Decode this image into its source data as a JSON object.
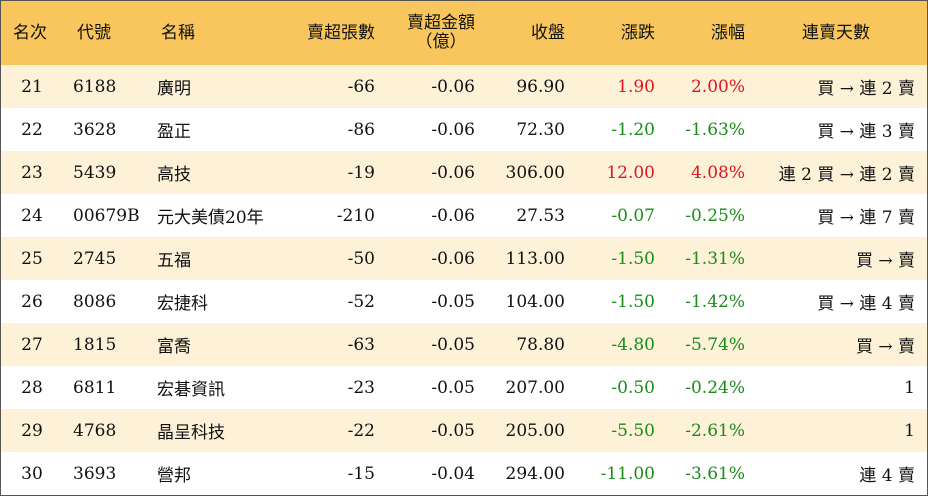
{
  "headers": {
    "rank": "名次",
    "code": "代號",
    "name": "名稱",
    "net_sell_lots": "賣超張數",
    "net_sell_amount_line1": "賣超金額",
    "net_sell_amount_line2": "（億）",
    "close": "收盤",
    "change": "漲跌",
    "change_pct": "漲幅",
    "streak": "連賣天數"
  },
  "colors": {
    "header_bg": "#f8c65c",
    "stripe_bg": "#fdf1d8",
    "up": "#e0141e",
    "down": "#1a8c1a"
  },
  "rows": [
    {
      "rank": "21",
      "code": "6188",
      "name": "廣明",
      "lots": "-66",
      "amount": "-0.06",
      "close": "96.90",
      "change": "1.90",
      "pct": "2.00%",
      "dir": "up",
      "streak": "買 → 連 2 賣"
    },
    {
      "rank": "22",
      "code": "3628",
      "name": "盈正",
      "lots": "-86",
      "amount": "-0.06",
      "close": "72.30",
      "change": "-1.20",
      "pct": "-1.63%",
      "dir": "down",
      "streak": "買 → 連 3 賣"
    },
    {
      "rank": "23",
      "code": "5439",
      "name": "高技",
      "lots": "-19",
      "amount": "-0.06",
      "close": "306.00",
      "change": "12.00",
      "pct": "4.08%",
      "dir": "up",
      "streak": "連 2 買 → 連 2 賣"
    },
    {
      "rank": "24",
      "code": "00679B",
      "name": "元大美債20年",
      "lots": "-210",
      "amount": "-0.06",
      "close": "27.53",
      "change": "-0.07",
      "pct": "-0.25%",
      "dir": "down",
      "streak": "買 → 連 7 賣"
    },
    {
      "rank": "25",
      "code": "2745",
      "name": "五福",
      "lots": "-50",
      "amount": "-0.06",
      "close": "113.00",
      "change": "-1.50",
      "pct": "-1.31%",
      "dir": "down",
      "streak": "買 → 賣"
    },
    {
      "rank": "26",
      "code": "8086",
      "name": "宏捷科",
      "lots": "-52",
      "amount": "-0.05",
      "close": "104.00",
      "change": "-1.50",
      "pct": "-1.42%",
      "dir": "down",
      "streak": "買 → 連 4 賣"
    },
    {
      "rank": "27",
      "code": "1815",
      "name": "富喬",
      "lots": "-63",
      "amount": "-0.05",
      "close": "78.80",
      "change": "-4.80",
      "pct": "-5.74%",
      "dir": "down",
      "streak": "買 → 賣"
    },
    {
      "rank": "28",
      "code": "6811",
      "name": "宏碁資訊",
      "lots": "-23",
      "amount": "-0.05",
      "close": "207.00",
      "change": "-0.50",
      "pct": "-0.24%",
      "dir": "down",
      "streak": "1"
    },
    {
      "rank": "29",
      "code": "4768",
      "name": "晶呈科技",
      "lots": "-22",
      "amount": "-0.05",
      "close": "205.00",
      "change": "-5.50",
      "pct": "-2.61%",
      "dir": "down",
      "streak": "1"
    },
    {
      "rank": "30",
      "code": "3693",
      "name": "營邦",
      "lots": "-15",
      "amount": "-0.04",
      "close": "294.00",
      "change": "-11.00",
      "pct": "-3.61%",
      "dir": "down",
      "streak": "連 4 賣"
    }
  ]
}
